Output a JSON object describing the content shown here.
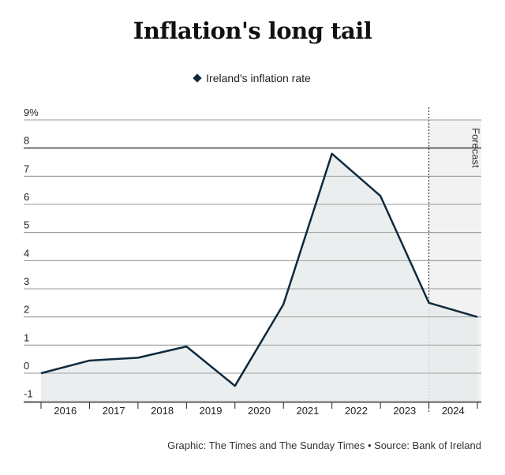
{
  "title": "Inflation's long tail",
  "legend": {
    "label": "Ireland's inflation rate"
  },
  "source": "Graphic: The Times and The Sunday Times • Source: Bank of Ireland",
  "colors": {
    "line": "#0f2a3d",
    "area": "#e6ebec",
    "forecast_band": "#f3f2f2",
    "grid": "#9a9a9a"
  },
  "chart_data": {
    "type": "area",
    "title": "Inflation's long tail",
    "xlabel": "",
    "ylabel": "",
    "x_ticks": [
      "2016",
      "2017",
      "2018",
      "2019",
      "2020",
      "2021",
      "2022",
      "2023",
      "2024"
    ],
    "y_ticks": [
      "9%",
      "8",
      "7",
      "6",
      "5",
      "4",
      "3",
      "2",
      "1",
      "0",
      "-1"
    ],
    "y_tick_values": [
      9,
      8,
      7,
      6,
      5,
      4,
      3,
      2,
      1,
      0,
      -1
    ],
    "ylim": [
      -1,
      9
    ],
    "grid": true,
    "forecast_label": "Forecast",
    "series": [
      {
        "name": "Ireland's inflation rate",
        "points": [
          {
            "x": 2015.5,
            "y": 0.0
          },
          {
            "x": 2016.5,
            "y": 0.45
          },
          {
            "x": 2017.5,
            "y": 0.55
          },
          {
            "x": 2018.5,
            "y": 0.95
          },
          {
            "x": 2019.5,
            "y": -0.45
          },
          {
            "x": 2020.5,
            "y": 2.45
          },
          {
            "x": 2021.5,
            "y": 7.8
          },
          {
            "x": 2022.5,
            "y": 6.3
          },
          {
            "x": 2023.5,
            "y": 2.5
          },
          {
            "x": 2024.5,
            "y": 2.0
          }
        ]
      }
    ],
    "forecast_start": 2023.5
  }
}
